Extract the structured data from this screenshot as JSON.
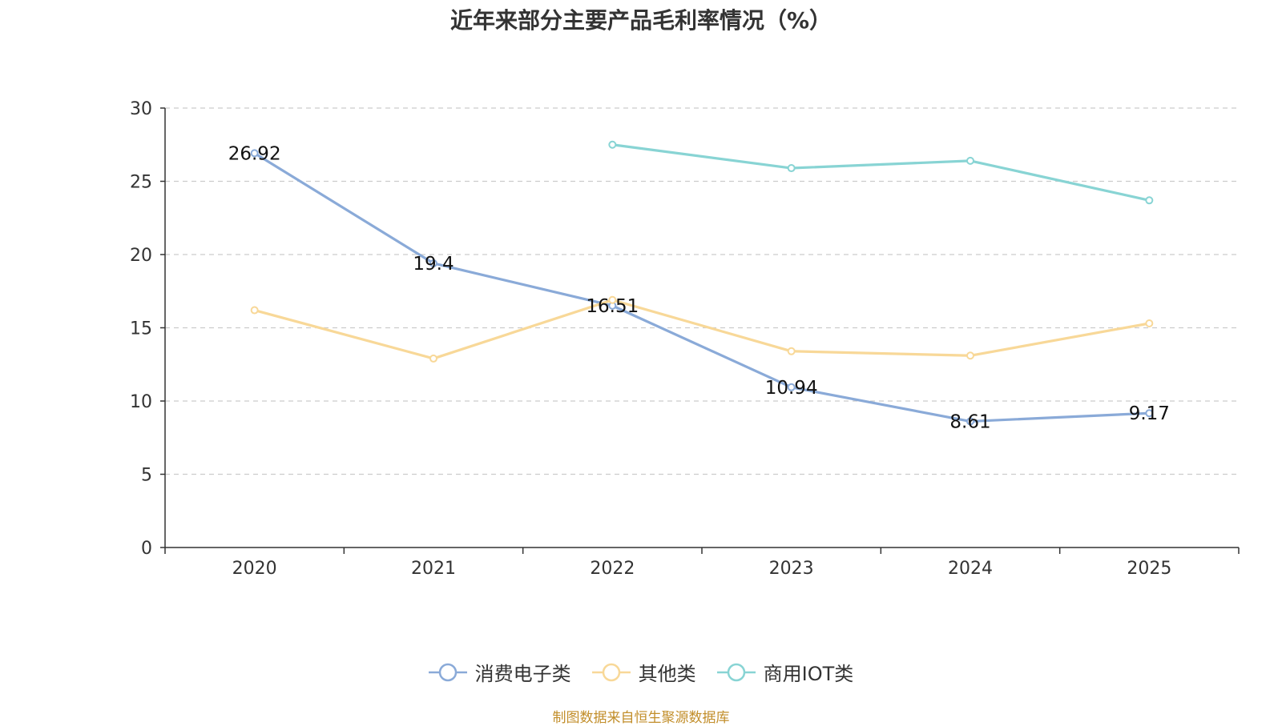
{
  "chart_data": {
    "type": "line",
    "title": "近年来部分主要产品毛利率情况（%）",
    "categories": [
      "2020",
      "2021",
      "2022",
      "2023",
      "2024",
      "2025"
    ],
    "ylim": [
      0,
      30
    ],
    "yticks": [
      0,
      5,
      10,
      15,
      20,
      25,
      30
    ],
    "grid": true,
    "legend_position": "bottom",
    "series": [
      {
        "name": "消费电子类",
        "color": "#8aaad8",
        "values": [
          26.92,
          19.4,
          16.51,
          10.94,
          8.61,
          9.17
        ],
        "show_labels": true
      },
      {
        "name": "其他类",
        "color": "#f8d898",
        "values": [
          16.2,
          12.9,
          16.9,
          13.4,
          13.1,
          15.3
        ],
        "show_labels": false
      },
      {
        "name": "商用IOT类",
        "color": "#88d4d4",
        "values": [
          null,
          null,
          27.5,
          25.9,
          26.4,
          23.7
        ],
        "show_labels": false
      }
    ],
    "labels": [
      "26.92",
      "19.4",
      "16.51",
      "10.94",
      "8.61",
      "9.17"
    ],
    "ytick_labels": [
      "0",
      "5",
      "10",
      "15",
      "20",
      "25",
      "30"
    ]
  },
  "source": "制图数据来自恒生聚源数据库"
}
